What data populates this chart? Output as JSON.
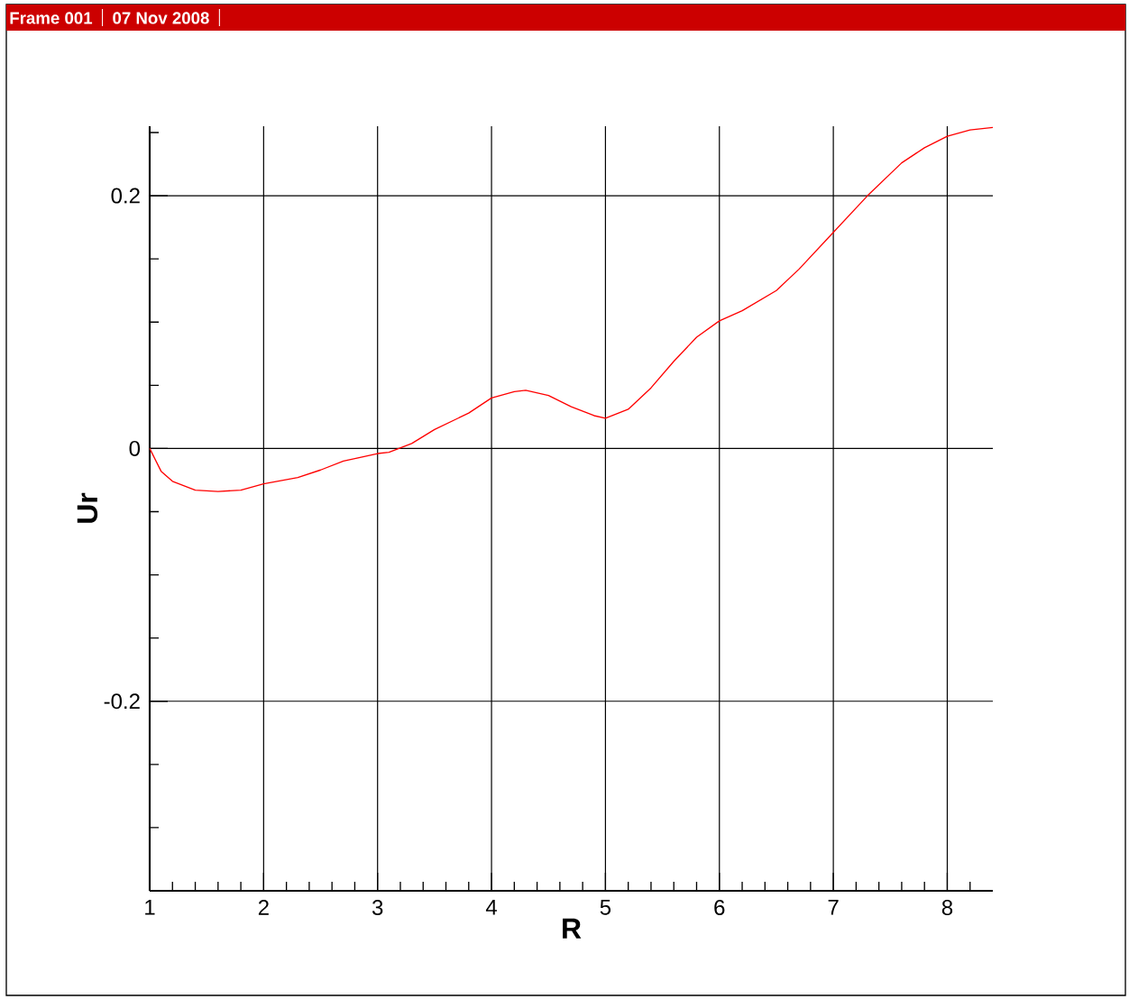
{
  "chart_data": {
    "type": "line",
    "xlabel": "R",
    "ylabel": "Ur",
    "annotations": [
      "Frame 001",
      "07 Nov 2008"
    ],
    "x": [
      1,
      1.1,
      1.2,
      1.4,
      1.6,
      1.8,
      2.0,
      2.3,
      2.5,
      2.7,
      3.0,
      3.1,
      3.3,
      3.5,
      3.8,
      4.0,
      4.2,
      4.3,
      4.5,
      4.7,
      4.9,
      5.0,
      5.2,
      5.4,
      5.6,
      5.8,
      6.0,
      6.2,
      6.5,
      6.7,
      7.0,
      7.3,
      7.6,
      7.8,
      8.0,
      8.2,
      8.4
    ],
    "series": [
      {
        "color": "#ff0000",
        "values": [
          0,
          -0.018,
          -0.026,
          -0.033,
          -0.034,
          -0.033,
          -0.028,
          -0.023,
          -0.017,
          -0.01,
          -0.004,
          -0.003,
          0.004,
          0.015,
          0.028,
          0.04,
          0.045,
          0.046,
          0.042,
          0.033,
          0.026,
          0.024,
          0.031,
          0.048,
          0.069,
          0.088,
          0.101,
          0.109,
          0.125,
          0.142,
          0.171,
          0.2,
          0.226,
          0.238,
          0.247,
          0.252,
          0.254
        ]
      }
    ],
    "xlim": [
      1,
      8.4
    ],
    "ylim": [
      -0.35,
      0.255
    ],
    "xticks": [
      1,
      {
        "value": 1.2,
        "label": null
      },
      {
        "value": 1.4,
        "label": null
      },
      {
        "value": 1.6,
        "label": null
      },
      {
        "value": 1.8,
        "label": null
      },
      2,
      {
        "value": 2.2,
        "label": null
      },
      {
        "value": 2.4,
        "label": null
      },
      {
        "value": 2.6,
        "label": null
      },
      {
        "value": 2.8,
        "label": null
      },
      3,
      {
        "value": 3.2,
        "label": null
      },
      {
        "value": 3.4,
        "label": null
      },
      {
        "value": 3.6,
        "label": null
      },
      {
        "value": 3.8,
        "label": null
      },
      4,
      {
        "value": 4.2,
        "label": null
      },
      {
        "value": 4.4,
        "label": null
      },
      {
        "value": 4.6,
        "label": null
      },
      {
        "value": 4.8,
        "label": null
      },
      5,
      {
        "value": 5.2,
        "label": null
      },
      {
        "value": 5.4,
        "label": null
      },
      {
        "value": 5.6,
        "label": null
      },
      {
        "value": 5.8,
        "label": null
      },
      6,
      {
        "value": 6.2,
        "label": null
      },
      {
        "value": 6.4,
        "label": null
      },
      {
        "value": 6.6,
        "label": null
      },
      {
        "value": 6.8,
        "label": null
      },
      7,
      {
        "value": 7.2,
        "label": null
      },
      {
        "value": 7.4,
        "label": null
      },
      {
        "value": 7.6,
        "label": null
      },
      {
        "value": 7.8,
        "label": null
      },
      8,
      {
        "value": 8.2,
        "label": null
      }
    ],
    "yticks": [
      {
        "value": -0.3,
        "label": null
      },
      {
        "value": -0.25,
        "label": null
      },
      -0.2,
      {
        "value": -0.15,
        "label": null
      },
      {
        "value": -0.1,
        "label": null
      },
      {
        "value": -0.05,
        "label": null
      },
      0,
      {
        "value": 0.05,
        "label": null
      },
      {
        "value": 0.1,
        "label": null
      },
      {
        "value": 0.15,
        "label": null
      },
      0.2,
      {
        "value": 0.25,
        "label": null
      }
    ],
    "grid": true,
    "marker": "none",
    "line_style": "solid"
  }
}
